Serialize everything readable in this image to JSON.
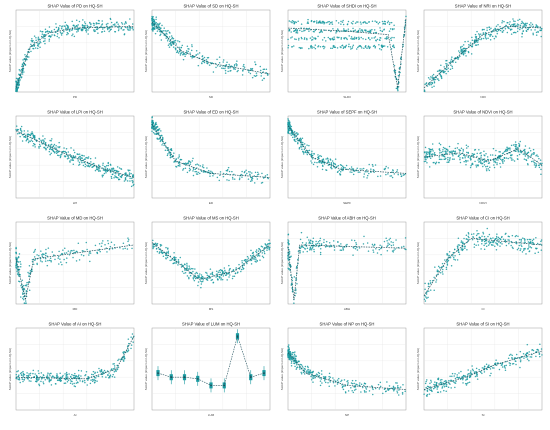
{
  "colors": {
    "points": "#1a9aa0",
    "trend": "#1f4e5a",
    "grid": "#e3e3e3",
    "axis": "#888888"
  },
  "chart_data": [
    {
      "type": "scatter",
      "title": "SHAP Value of PD on HQ-SH",
      "xlabel": "PD",
      "ylabel": "SHAP value (impact on HQ-SH)",
      "shape": "sat",
      "density": 380,
      "trend": [
        [
          0,
          0.05
        ],
        [
          0.12,
          0.55
        ],
        [
          0.28,
          0.72
        ],
        [
          0.5,
          0.78
        ],
        [
          1,
          0.8
        ]
      ],
      "spread": 0.12
    },
    {
      "type": "scatter",
      "title": "SHAP Value of SD on HQ-SH",
      "xlabel": "SD",
      "ylabel": "SHAP value (impact on HQ-SH)",
      "shape": "decay",
      "density": 300,
      "trend": [
        [
          0,
          0.85
        ],
        [
          0.25,
          0.5
        ],
        [
          0.5,
          0.35
        ],
        [
          1,
          0.22
        ]
      ],
      "spread": 0.14
    },
    {
      "type": "scatter",
      "title": "SHAP Value of SHDI on HQ-SH",
      "xlabel": "SHDI",
      "ylabel": "SHAP value (impact on HQ-SH)",
      "shape": "bands",
      "density": 420,
      "trend": [
        [
          0,
          0.78
        ],
        [
          0.5,
          0.74
        ],
        [
          0.85,
          0.7
        ],
        [
          0.93,
          0.05
        ],
        [
          1,
          0.9
        ]
      ],
      "spread": 0.12
    },
    {
      "type": "scatter",
      "title": "SHAP Value of NRI on HQ-SH",
      "xlabel": "NRI",
      "ylabel": "SHAP value (impact on HQ-SH)",
      "shape": "rise",
      "density": 320,
      "trend": [
        [
          0,
          0.05
        ],
        [
          0.3,
          0.45
        ],
        [
          0.5,
          0.7
        ],
        [
          0.7,
          0.8
        ],
        [
          1,
          0.78
        ]
      ],
      "spread": 0.14
    },
    {
      "type": "scatter",
      "title": "SHAP Value of LPI on HQ-SH",
      "xlabel": "LPI",
      "ylabel": "SHAP value (impact on HQ-SH)",
      "shape": "fall",
      "density": 360,
      "trend": [
        [
          0,
          0.82
        ],
        [
          0.4,
          0.55
        ],
        [
          0.75,
          0.35
        ],
        [
          1,
          0.25
        ]
      ],
      "spread": 0.13
    },
    {
      "type": "scatter",
      "title": "SHAP Value of ED on HQ-SH",
      "xlabel": "ED",
      "ylabel": "SHAP value (impact on HQ-SH)",
      "shape": "decay",
      "density": 280,
      "trend": [
        [
          0,
          0.9
        ],
        [
          0.2,
          0.45
        ],
        [
          0.5,
          0.3
        ],
        [
          1,
          0.25
        ]
      ],
      "spread": 0.12
    },
    {
      "type": "scatter",
      "title": "SHAP Value of SEPF on HQ-SH",
      "xlabel": "SEPF",
      "ylabel": "SHAP value (impact on HQ-SH)",
      "shape": "decay",
      "density": 300,
      "trend": [
        [
          0,
          0.88
        ],
        [
          0.2,
          0.5
        ],
        [
          0.45,
          0.35
        ],
        [
          1,
          0.3
        ]
      ],
      "spread": 0.12
    },
    {
      "type": "scatter",
      "title": "SHAP Value of NDVI on HQ-SH",
      "xlabel": "NDVI",
      "ylabel": "SHAP value (impact on HQ-SH)",
      "shape": "wave",
      "density": 380,
      "trend": [
        [
          0,
          0.5
        ],
        [
          0.3,
          0.55
        ],
        [
          0.55,
          0.45
        ],
        [
          0.8,
          0.6
        ],
        [
          1,
          0.4
        ]
      ],
      "spread": 0.18
    },
    {
      "type": "scatter",
      "title": "SHAP Value of MD on HQ-SH",
      "xlabel": "MD",
      "ylabel": "SHAP value (impact on HQ-SH)",
      "shape": "spike",
      "density": 220,
      "trend": [
        [
          0,
          0.55
        ],
        [
          0.08,
          0.05
        ],
        [
          0.15,
          0.55
        ],
        [
          1,
          0.72
        ]
      ],
      "spread": 0.15
    },
    {
      "type": "scatter",
      "title": "SHAP Value of MS on HQ-SH",
      "xlabel": "MS",
      "ylabel": "SHAP value (impact on HQ-SH)",
      "shape": "ushape",
      "density": 320,
      "trend": [
        [
          0,
          0.75
        ],
        [
          0.4,
          0.3
        ],
        [
          0.7,
          0.4
        ],
        [
          1,
          0.72
        ]
      ],
      "spread": 0.12
    },
    {
      "type": "scatter",
      "title": "SHAP Value of ABH on HQ-SH",
      "xlabel": "ABH",
      "ylabel": "SHAP value (impact on HQ-SH)",
      "shape": "spike",
      "density": 220,
      "trend": [
        [
          0,
          0.7
        ],
        [
          0.05,
          0.05
        ],
        [
          0.1,
          0.72
        ],
        [
          1,
          0.68
        ]
      ],
      "spread": 0.15
    },
    {
      "type": "scatter",
      "title": "SHAP Value of CI on HQ-SH",
      "xlabel": "CI",
      "ylabel": "SHAP value (impact on HQ-SH)",
      "shape": "rise",
      "density": 280,
      "trend": [
        [
          0,
          0.1
        ],
        [
          0.2,
          0.55
        ],
        [
          0.4,
          0.8
        ],
        [
          1,
          0.72
        ]
      ],
      "spread": 0.16
    },
    {
      "type": "scatter",
      "title": "SHAP Value of AI on HQ-SH",
      "xlabel": "AI",
      "ylabel": "SHAP value (impact on HQ-SH)",
      "shape": "rise",
      "density": 300,
      "trend": [
        [
          0,
          0.4
        ],
        [
          0.6,
          0.38
        ],
        [
          0.85,
          0.5
        ],
        [
          1,
          0.9
        ]
      ],
      "spread": 0.12
    },
    {
      "type": "box",
      "title": "SHAP Value of LUM on HQ-SH",
      "xlabel": "LUM",
      "ylabel": "SHAP value (impact on HQ-SH)",
      "shape": "boxes",
      "density": 0,
      "trend": [
        [
          0,
          0.45
        ],
        [
          0.12,
          0.4
        ],
        [
          0.25,
          0.4
        ],
        [
          0.37,
          0.38
        ],
        [
          0.5,
          0.3
        ],
        [
          0.62,
          0.3
        ],
        [
          0.75,
          0.9
        ],
        [
          0.87,
          0.4
        ],
        [
          1,
          0.45
        ]
      ],
      "spread": 0.1
    },
    {
      "type": "scatter",
      "title": "SHAP Value of NP on HQ-SH",
      "xlabel": "NP",
      "ylabel": "SHAP value (impact on HQ-SH)",
      "shape": "decay",
      "density": 300,
      "trend": [
        [
          0,
          0.7
        ],
        [
          0.15,
          0.45
        ],
        [
          0.5,
          0.3
        ],
        [
          1,
          0.25
        ]
      ],
      "spread": 0.12
    },
    {
      "type": "scatter",
      "title": "SHAP Value of SI on HQ-SH",
      "xlabel": "SI",
      "ylabel": "SHAP value (impact on HQ-SH)",
      "shape": "rise",
      "density": 260,
      "trend": [
        [
          0,
          0.25
        ],
        [
          0.35,
          0.4
        ],
        [
          0.6,
          0.55
        ],
        [
          1,
          0.72
        ]
      ],
      "spread": 0.14
    }
  ]
}
